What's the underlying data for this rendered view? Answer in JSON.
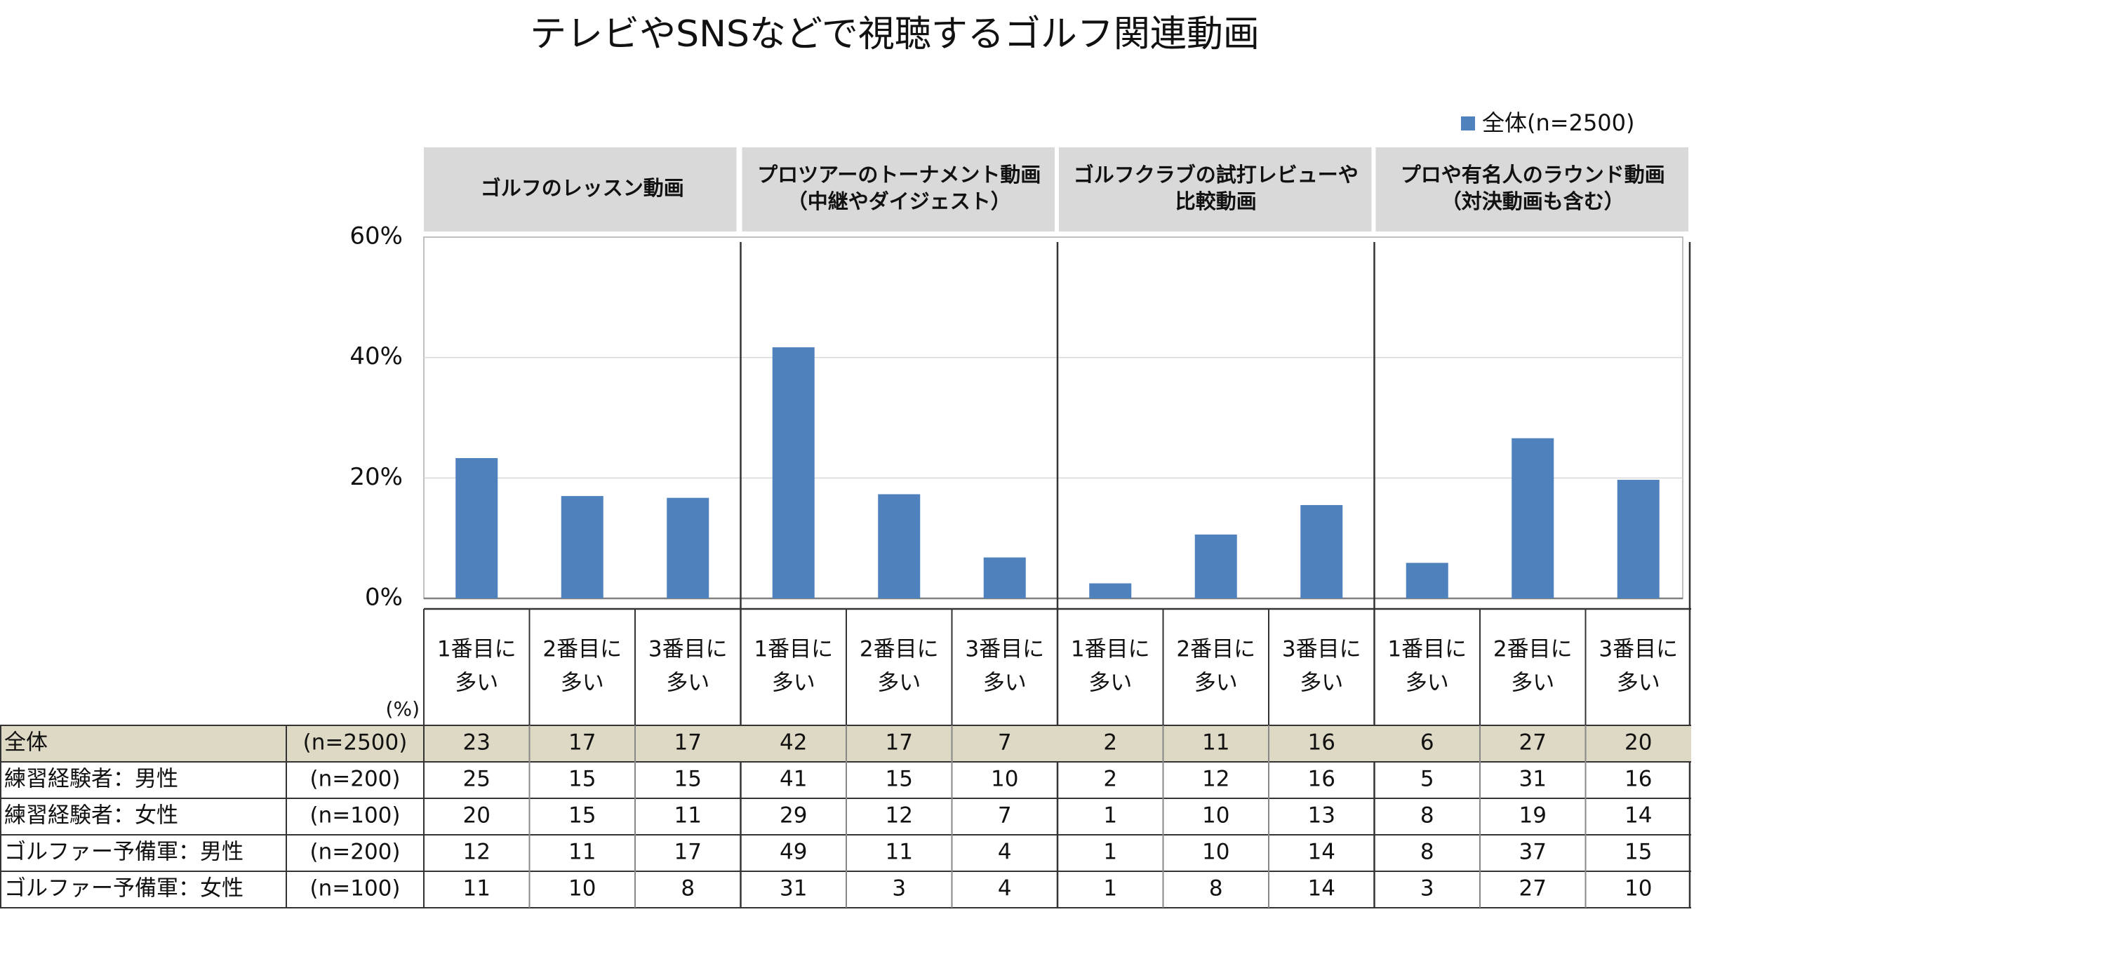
{
  "chart_data": {
    "type": "bar",
    "title": "テレビやSNSなどで視聴するゴルフ関連動画",
    "legend": {
      "label": "全体(n=2500)",
      "color": "#4f81bd",
      "position": "top-right"
    },
    "ylim": [
      0,
      60
    ],
    "yticks": [
      "60%",
      "40%",
      "20%",
      "0%"
    ],
    "grid": true,
    "unit_label": "(%)",
    "groups": [
      {
        "label_lines": [
          "ゴルフのレッスン動画"
        ]
      },
      {
        "label_lines": [
          "プロツアーのトーナメント動画",
          "（中継やダイジェスト）"
        ]
      },
      {
        "label_lines": [
          "ゴルフクラブの試打レビューや",
          "比較動画"
        ]
      },
      {
        "label_lines": [
          "プロや有名人のラウンド動画",
          "（対決動画も含む）"
        ]
      }
    ],
    "categories": [
      [
        "1番目に",
        "多い"
      ],
      [
        "2番目に",
        "多い"
      ],
      [
        "3番目に",
        "多い"
      ],
      [
        "1番目に",
        "多い"
      ],
      [
        "2番目に",
        "多い"
      ],
      [
        "3番目に",
        "多い"
      ],
      [
        "1番目に",
        "多い"
      ],
      [
        "2番目に",
        "多い"
      ],
      [
        "3番目に",
        "多い"
      ],
      [
        "1番目に",
        "多い"
      ],
      [
        "2番目に",
        "多い"
      ],
      [
        "3番目に",
        "多い"
      ]
    ],
    "series": [
      {
        "name": "全体(n=2500)",
        "values": [
          23.3,
          17.0,
          16.7,
          41.7,
          17.3,
          6.8,
          2.5,
          10.6,
          15.5,
          5.9,
          26.6,
          19.7
        ]
      }
    ],
    "table": {
      "rows": [
        {
          "label": "全体",
          "n": "(n=2500)",
          "values": [
            "23",
            "17",
            "17",
            "42",
            "17",
            "7",
            "2",
            "11",
            "16",
            "6",
            "27",
            "20"
          ],
          "highlight": true
        },
        {
          "label": "練習経験者：男性",
          "n": "(n=200)",
          "values": [
            "25",
            "15",
            "15",
            "41",
            "15",
            "10",
            "2",
            "12",
            "16",
            "5",
            "31",
            "16"
          ],
          "highlight": false
        },
        {
          "label": "練習経験者：女性",
          "n": "(n=100)",
          "values": [
            "20",
            "15",
            "11",
            "29",
            "12",
            "7",
            "1",
            "10",
            "13",
            "8",
            "19",
            "14"
          ],
          "highlight": false
        },
        {
          "label": "ゴルファー予備軍：男性",
          "n": "(n=200)",
          "values": [
            "12",
            "11",
            "17",
            "49",
            "11",
            "4",
            "1",
            "10",
            "14",
            "8",
            "37",
            "15"
          ],
          "highlight": false
        },
        {
          "label": "ゴルファー予備軍：女性",
          "n": "(n=100)",
          "values": [
            "11",
            "10",
            "8",
            "31",
            "3",
            "4",
            "1",
            "8",
            "14",
            "3",
            "27",
            "10"
          ],
          "highlight": false
        }
      ]
    },
    "colors": {
      "bar": "#4f81bd",
      "header_bg": "#d9d9d9",
      "highlight_row": "#ddd9c4",
      "grid": "#d9d9d9"
    }
  }
}
